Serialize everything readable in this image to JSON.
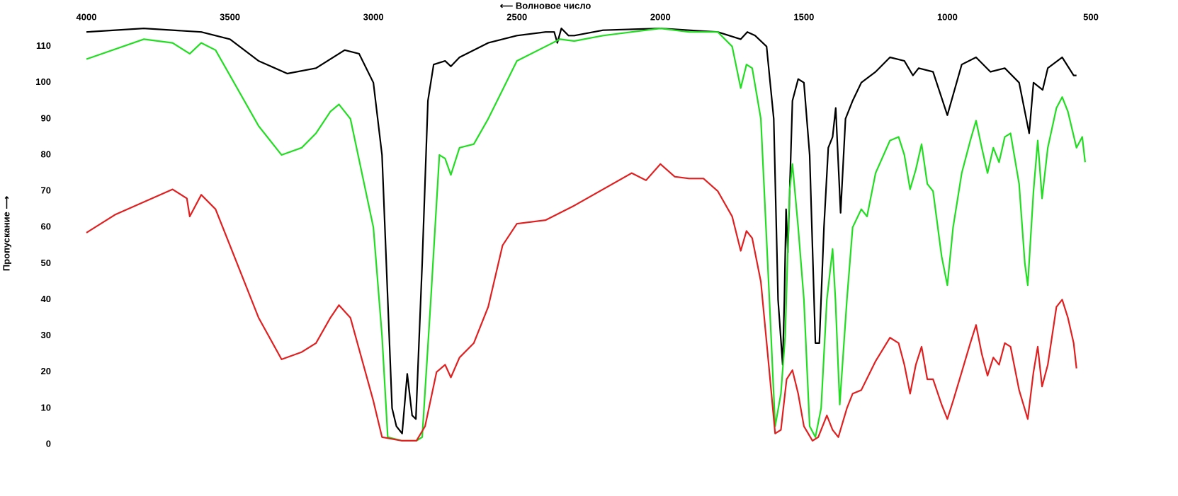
{
  "chart_data": {
    "type": "line",
    "x_label": "⟵ Волновое число",
    "y_label": "Пропускание ⟶",
    "xlim": [
      4000,
      500
    ],
    "xticks": [
      4000,
      3500,
      3000,
      2500,
      2000,
      1500,
      1000,
      500
    ],
    "ylim": [
      0,
      116
    ],
    "yticks": [
      0,
      10,
      20,
      30,
      40,
      50,
      60,
      70,
      80,
      90,
      100,
      110
    ],
    "series": [
      {
        "color": "#000000",
        "x": [
          4000,
          3800,
          3600,
          3500,
          3400,
          3300,
          3200,
          3100,
          3050,
          3000,
          2970,
          2950,
          2935,
          2920,
          2900,
          2882,
          2865,
          2852,
          2830,
          2810,
          2790,
          2750,
          2730,
          2700,
          2600,
          2500,
          2400,
          2370,
          2359,
          2345,
          2320,
          2300,
          2200,
          2000,
          1900,
          1800,
          1720,
          1697,
          1670,
          1630,
          1605,
          1590,
          1574,
          1568,
          1562,
          1556,
          1540,
          1520,
          1500,
          1480,
          1460,
          1446,
          1430,
          1415,
          1400,
          1389,
          1372,
          1355,
          1330,
          1300,
          1250,
          1200,
          1150,
          1120,
          1100,
          1050,
          1000,
          950,
          900,
          850,
          800,
          750,
          715,
          700,
          668,
          650,
          600,
          560,
          550
        ],
        "values": [
          114,
          115,
          114,
          112,
          106,
          102.5,
          104,
          109,
          108,
          100,
          80,
          40,
          10,
          5,
          3,
          19.5,
          8,
          7,
          50,
          95,
          105,
          106,
          104.5,
          107,
          111,
          113,
          114,
          114,
          111,
          115,
          113,
          113,
          114.5,
          115,
          114.5,
          114,
          112,
          114,
          113,
          110,
          90,
          40,
          22,
          40,
          65,
          53,
          95,
          101,
          100,
          80,
          28,
          28,
          60,
          82,
          85,
          93,
          64,
          90,
          95,
          100,
          103,
          107,
          106,
          102,
          104,
          103,
          91,
          105,
          107,
          103,
          104,
          100,
          86,
          100,
          98,
          104,
          107,
          102,
          102
        ]
      },
      {
        "color": "#22dd22",
        "x": [
          4000,
          3800,
          3700,
          3640,
          3600,
          3550,
          3500,
          3400,
          3320,
          3250,
          3200,
          3150,
          3120,
          3080,
          3000,
          2970,
          2950,
          2900,
          2850,
          2830,
          2800,
          2770,
          2750,
          2730,
          2700,
          2650,
          2600,
          2550,
          2500,
          2400,
          2350,
          2300,
          2200,
          2100,
          2000,
          1900,
          1800,
          1750,
          1720,
          1700,
          1680,
          1650,
          1620,
          1600,
          1580,
          1565,
          1550,
          1540,
          1520,
          1500,
          1480,
          1460,
          1440,
          1420,
          1400,
          1390,
          1375,
          1350,
          1330,
          1300,
          1280,
          1250,
          1200,
          1170,
          1150,
          1130,
          1110,
          1090,
          1070,
          1050,
          1020,
          1000,
          980,
          950,
          920,
          900,
          880,
          860,
          840,
          820,
          800,
          780,
          750,
          730,
          720,
          700,
          685,
          670,
          650,
          620,
          600,
          580,
          550,
          530,
          520
        ],
        "values": [
          106.5,
          112,
          111,
          108,
          111,
          109,
          102,
          88,
          80,
          82,
          86,
          92,
          94,
          90,
          60,
          30,
          2,
          1,
          1,
          2,
          40,
          80,
          79,
          74.5,
          82,
          83,
          90,
          98,
          106,
          110,
          112,
          111.5,
          113,
          114,
          115,
          114,
          114,
          110,
          98.5,
          105,
          104,
          90,
          40,
          5,
          14,
          30,
          70,
          77.5,
          60,
          40,
          5,
          2,
          10,
          40,
          54,
          40,
          11,
          40,
          60,
          65,
          63,
          75,
          84,
          85,
          80,
          70.5,
          76,
          83,
          72,
          70,
          52,
          44,
          60,
          75,
          84,
          89.5,
          82,
          75,
          82,
          78,
          85,
          86,
          72,
          50,
          44,
          70,
          84,
          68,
          82,
          93,
          96,
          92,
          82,
          85,
          78
        ]
      },
      {
        "color": "#e02020",
        "x": [
          4000,
          3900,
          3800,
          3700,
          3650,
          3640,
          3600,
          3550,
          3500,
          3400,
          3320,
          3250,
          3200,
          3150,
          3120,
          3080,
          3000,
          2970,
          2900,
          2850,
          2820,
          2780,
          2750,
          2730,
          2700,
          2650,
          2600,
          2550,
          2500,
          2400,
          2300,
          2200,
          2100,
          2050,
          2000,
          1950,
          1900,
          1850,
          1800,
          1750,
          1720,
          1700,
          1680,
          1650,
          1620,
          1600,
          1580,
          1560,
          1540,
          1520,
          1500,
          1470,
          1450,
          1420,
          1400,
          1380,
          1350,
          1330,
          1300,
          1250,
          1200,
          1170,
          1150,
          1130,
          1110,
          1090,
          1070,
          1050,
          1020,
          1000,
          980,
          950,
          920,
          900,
          880,
          860,
          840,
          820,
          800,
          780,
          750,
          720,
          700,
          685,
          670,
          650,
          620,
          600,
          580,
          560,
          550
        ],
        "values": [
          58.5,
          63.5,
          67,
          70.5,
          68,
          63,
          69,
          65,
          55,
          35,
          23.5,
          25.5,
          28,
          35,
          38.5,
          35,
          12,
          2,
          1,
          1,
          5,
          20,
          22,
          18.5,
          24,
          28,
          38,
          55,
          61,
          62,
          66,
          70.5,
          75,
          73,
          77.5,
          74,
          73.5,
          73.5,
          70,
          63,
          53.5,
          59,
          57,
          45,
          20,
          3,
          4,
          18,
          20.5,
          14,
          5,
          1,
          2,
          8,
          4,
          2,
          10,
          14,
          15,
          23,
          29.5,
          28,
          22,
          14,
          22,
          27,
          18,
          18,
          11,
          7,
          12,
          20,
          28,
          33,
          25,
          19,
          24,
          22,
          28,
          27,
          15,
          7,
          20,
          27,
          16,
          22,
          38,
          40,
          35,
          28,
          21
        ]
      }
    ]
  }
}
